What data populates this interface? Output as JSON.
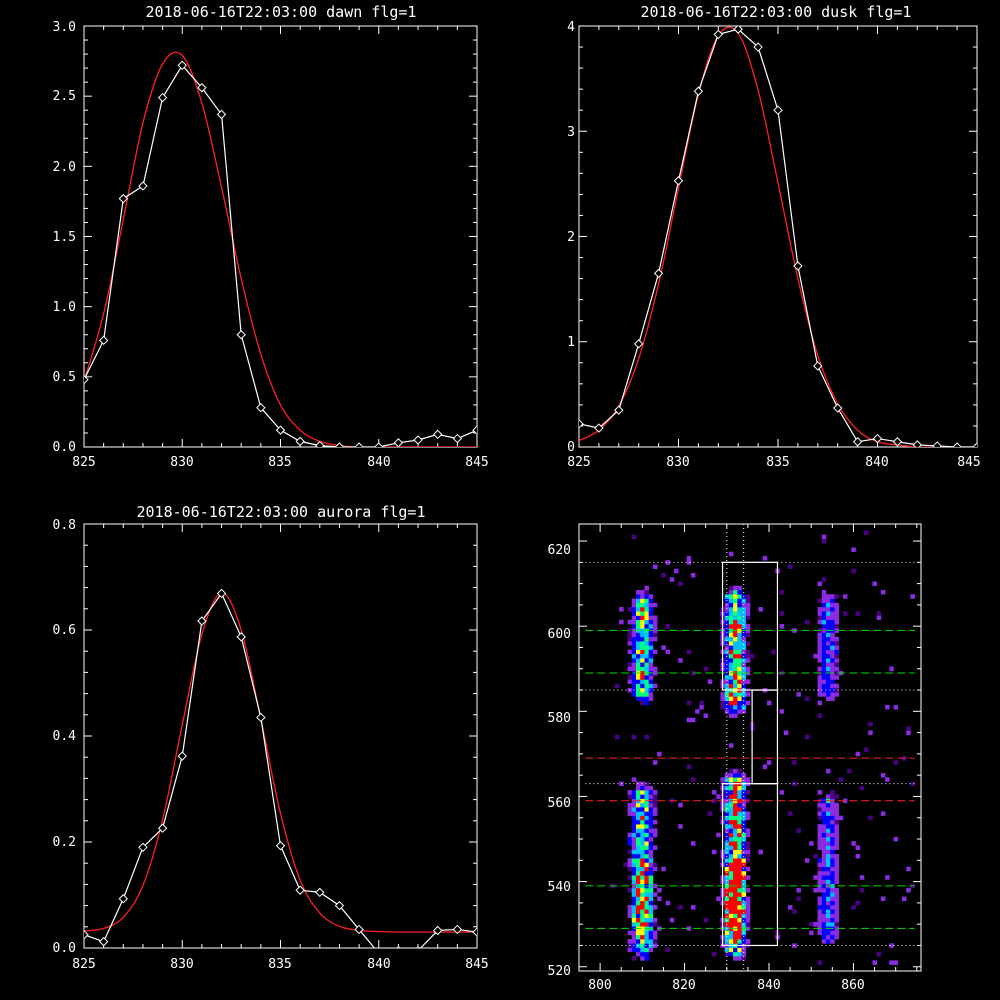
{
  "chart_data": [
    {
      "type": "line",
      "title": "2018-06-16T22:03:00 dawn flg=1",
      "xlim": [
        825,
        845
      ],
      "ylim": [
        0,
        3
      ],
      "xticks": [
        825,
        830,
        835,
        840,
        845
      ],
      "xtick_labels": [
        "825",
        "830",
        "835",
        "840",
        "845"
      ],
      "yticks": [
        0,
        0.5,
        1,
        1.5,
        2,
        2.5,
        3
      ],
      "ytick_labels": [
        "0.0",
        "0.5",
        "1.0",
        "1.5",
        "2.0",
        "2.5",
        "3.0"
      ],
      "series": [
        {
          "style": "white line with diamond markers",
          "x": [
            825,
            826,
            827,
            828,
            829,
            830,
            831,
            832,
            833,
            834,
            835,
            836,
            837,
            838,
            839,
            840,
            841,
            842,
            843,
            844,
            845
          ],
          "y": [
            0.48,
            0.76,
            1.77,
            1.86,
            2.49,
            2.72,
            2.56,
            2.37,
            0.8,
            0.28,
            0.12,
            0.04,
            0.01,
            0.0,
            0.0,
            0.0,
            0.03,
            0.05,
            0.09,
            0.06,
            0.12
          ]
        },
        {
          "style": "red gaussian fit",
          "x": [
            825,
            826,
            827,
            828,
            829,
            830,
            831,
            832,
            833,
            834,
            835,
            836,
            837,
            838,
            839,
            840,
            841,
            842,
            843,
            844,
            845
          ],
          "y": [
            0.47,
            0.95,
            1.62,
            2.31,
            2.73,
            2.79,
            2.45,
            1.85,
            1.2,
            0.66,
            0.3,
            0.12,
            0.04,
            0.01,
            0.0,
            0.0,
            0.0,
            0.0,
            0.0,
            0.0,
            0.0
          ]
        }
      ],
      "colors": {
        "data": "#ffffff",
        "fit": "#ff2020"
      }
    },
    {
      "type": "line",
      "title": "2018-06-16T22:03:00 dusk flg=1",
      "xlim": [
        825,
        845
      ],
      "ylim": [
        0,
        4
      ],
      "xticks": [
        825,
        830,
        835,
        840,
        845
      ],
      "xtick_labels": [
        "825",
        "830",
        "835",
        "840",
        "845"
      ],
      "yticks": [
        0,
        1,
        2,
        3,
        4
      ],
      "ytick_labels": [
        "0",
        "1",
        "2",
        "3",
        "4"
      ],
      "series": [
        {
          "style": "white line with diamond markers",
          "x": [
            825,
            826,
            827,
            828,
            829,
            830,
            831,
            832,
            833,
            834,
            835,
            836,
            837,
            838,
            839,
            840,
            841,
            842,
            843,
            844,
            845
          ],
          "y": [
            0.22,
            0.18,
            0.35,
            0.98,
            1.65,
            2.53,
            3.38,
            3.92,
            3.97,
            3.8,
            3.2,
            1.72,
            0.77,
            0.37,
            0.05,
            0.08,
            0.05,
            0.02,
            0.01,
            0.0,
            0.0
          ]
        },
        {
          "style": "red gaussian fit",
          "x": [
            825,
            826,
            827,
            828,
            829,
            830,
            831,
            832,
            833,
            834,
            835,
            836,
            837,
            838,
            839,
            840,
            841,
            842,
            843,
            844,
            845
          ],
          "y": [
            0.06,
            0.16,
            0.39,
            0.84,
            1.55,
            2.46,
            3.35,
            3.91,
            3.93,
            3.39,
            2.51,
            1.6,
            0.87,
            0.41,
            0.16,
            0.05,
            0.02,
            0.0,
            0.0,
            0.0,
            0.0
          ]
        }
      ],
      "colors": {
        "data": "#ffffff",
        "fit": "#ff2020"
      }
    },
    {
      "type": "line",
      "title": "2018-06-16T22:03:00 aurora flg=1",
      "xlim": [
        825,
        845
      ],
      "ylim": [
        0,
        0.8
      ],
      "xticks": [
        825,
        830,
        835,
        840,
        845
      ],
      "xtick_labels": [
        "825",
        "830",
        "835",
        "840",
        "845"
      ],
      "yticks": [
        0,
        0.2,
        0.4,
        0.6,
        0.8
      ],
      "ytick_labels": [
        "0.0",
        "0.2",
        "0.4",
        "0.6",
        "0.8"
      ],
      "series": [
        {
          "style": "white line with diamond markers",
          "x": [
            825,
            826,
            827,
            828,
            829,
            830,
            831,
            832,
            833,
            834,
            835,
            836,
            837,
            838,
            839,
            840,
            841,
            842,
            843,
            844,
            845
          ],
          "y": [
            0.025,
            0.012,
            0.093,
            0.19,
            0.226,
            0.362,
            0.617,
            0.669,
            0.587,
            0.435,
            0.193,
            0.109,
            0.105,
            0.08,
            0.035,
            -0.01,
            -0.005,
            -0.005,
            0.033,
            0.035,
            0.03
          ]
        },
        {
          "style": "red gaussian fit",
          "x": [
            825,
            826,
            827,
            828,
            829,
            830,
            831,
            832,
            833,
            834,
            835,
            836,
            837,
            838,
            839,
            840,
            841,
            842,
            843,
            844,
            845
          ],
          "y": [
            0.032,
            0.037,
            0.058,
            0.118,
            0.242,
            0.421,
            0.592,
            0.67,
            0.6,
            0.432,
            0.254,
            0.128,
            0.066,
            0.041,
            0.033,
            0.031,
            0.03,
            0.03,
            0.03,
            0.03,
            0.03
          ]
        }
      ],
      "colors": {
        "data": "#ffffff",
        "fit": "#ff2020"
      }
    },
    {
      "type": "heatmap",
      "title": "",
      "xlim": [
        795,
        876
      ],
      "ylim": [
        519,
        624
      ],
      "xticks": [
        800,
        820,
        840,
        860
      ],
      "xtick_labels": [
        "800",
        "820",
        "840",
        "860"
      ],
      "yticks": [
        520,
        540,
        560,
        580,
        600,
        620
      ],
      "ytick_labels": [
        "520",
        "540",
        "560",
        "580",
        "600",
        "620"
      ],
      "emission_bands": [
        {
          "x_center": 810,
          "y_ranges": [
            [
              585,
              605
            ],
            [
              525,
              560
            ]
          ],
          "peak": 0.8
        },
        {
          "x_center": 832,
          "y_ranges": [
            [
              582,
              606
            ],
            [
              525,
              563
            ]
          ],
          "peak": 1.0
        },
        {
          "x_center": 854,
          "y_ranges": [
            [
              585,
              605
            ],
            [
              528,
              558
            ]
          ],
          "peak": 0.45
        }
      ],
      "colormap": [
        "#000000",
        "#4b0082",
        "#8a2be2",
        "#0000ff",
        "#00bfff",
        "#00ff7f",
        "#ffff00",
        "#ff0000"
      ],
      "boxes": [
        {
          "x": [
            829,
            842
          ],
          "y": [
            585,
            615
          ]
        },
        {
          "x": [
            829,
            842
          ],
          "y": [
            525,
            563
          ]
        },
        {
          "x": [
            836,
            842
          ],
          "y": [
            563,
            585
          ]
        }
      ],
      "vlines_dotted_x": [
        830,
        834
      ],
      "hlines_dotted_y": [
        615,
        585,
        563,
        525
      ],
      "hlines_green_dashed_y": [
        599,
        589,
        539,
        529
      ],
      "hlines_red_dashed_y": [
        569,
        559
      ],
      "colors": {
        "box": "#ffffff",
        "green": "#00dd00",
        "red": "#ff2020",
        "dotted": "#ffffff"
      }
    }
  ]
}
